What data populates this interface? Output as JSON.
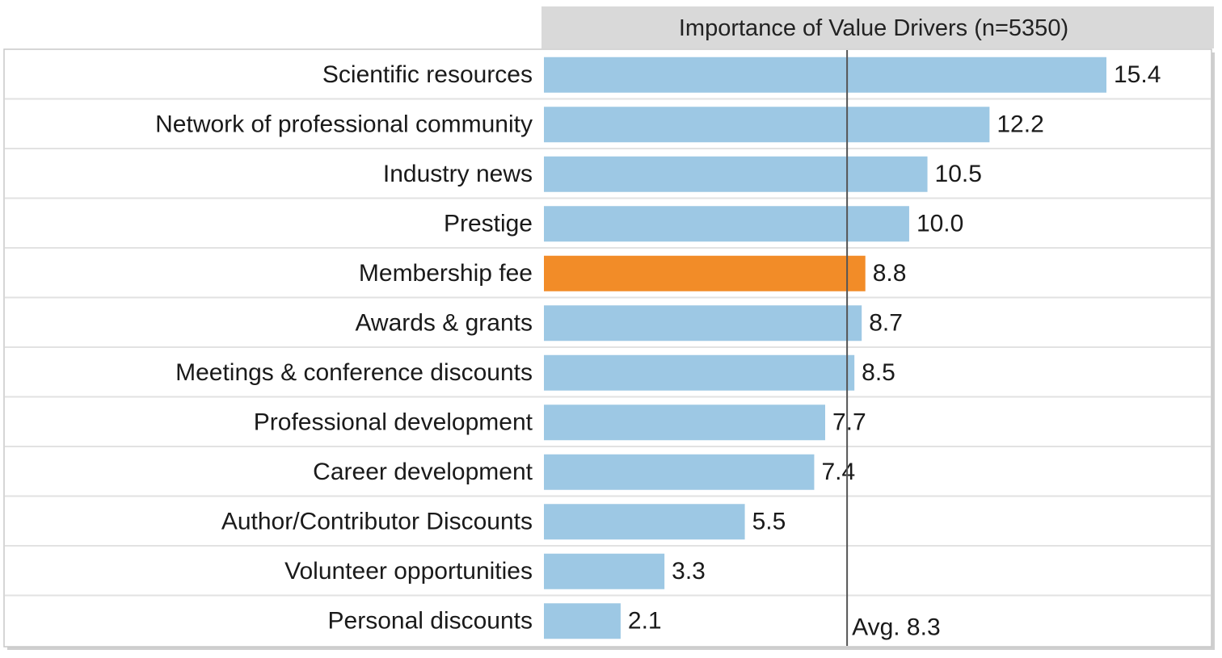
{
  "chart_data": {
    "type": "bar",
    "orientation": "horizontal",
    "title": "Importance of Value Drivers (n=5350)",
    "categories": [
      "Scientific resources",
      "Network of professional community",
      "Industry news",
      "Prestige",
      "Membership fee",
      "Awards & grants",
      "Meetings & conference discounts",
      "Professional development",
      "Career development",
      "Author/Contributor Discounts",
      "Volunteer opportunities",
      "Personal discounts"
    ],
    "values": [
      15.4,
      12.2,
      10.5,
      10.0,
      8.8,
      8.7,
      8.5,
      7.7,
      7.4,
      5.5,
      3.3,
      2.1
    ],
    "value_labels": [
      "15.4",
      "12.2",
      "10.5",
      "10.0",
      "8.8",
      "8.7",
      "8.5",
      "7.7",
      "7.4",
      "5.5",
      "3.3",
      "2.1"
    ],
    "highlight_category": "Membership fee",
    "reference_line": {
      "value": 8.3,
      "label": "Avg. 8.3"
    },
    "xlim": [
      0,
      15.4
    ],
    "grid": false,
    "colors": {
      "bar": "#9dc8e4",
      "highlight_bar": "#f28c28",
      "reference_line": "#555555",
      "header_background": "#d9d9d9",
      "row_divider": "#e2e2e2"
    }
  }
}
